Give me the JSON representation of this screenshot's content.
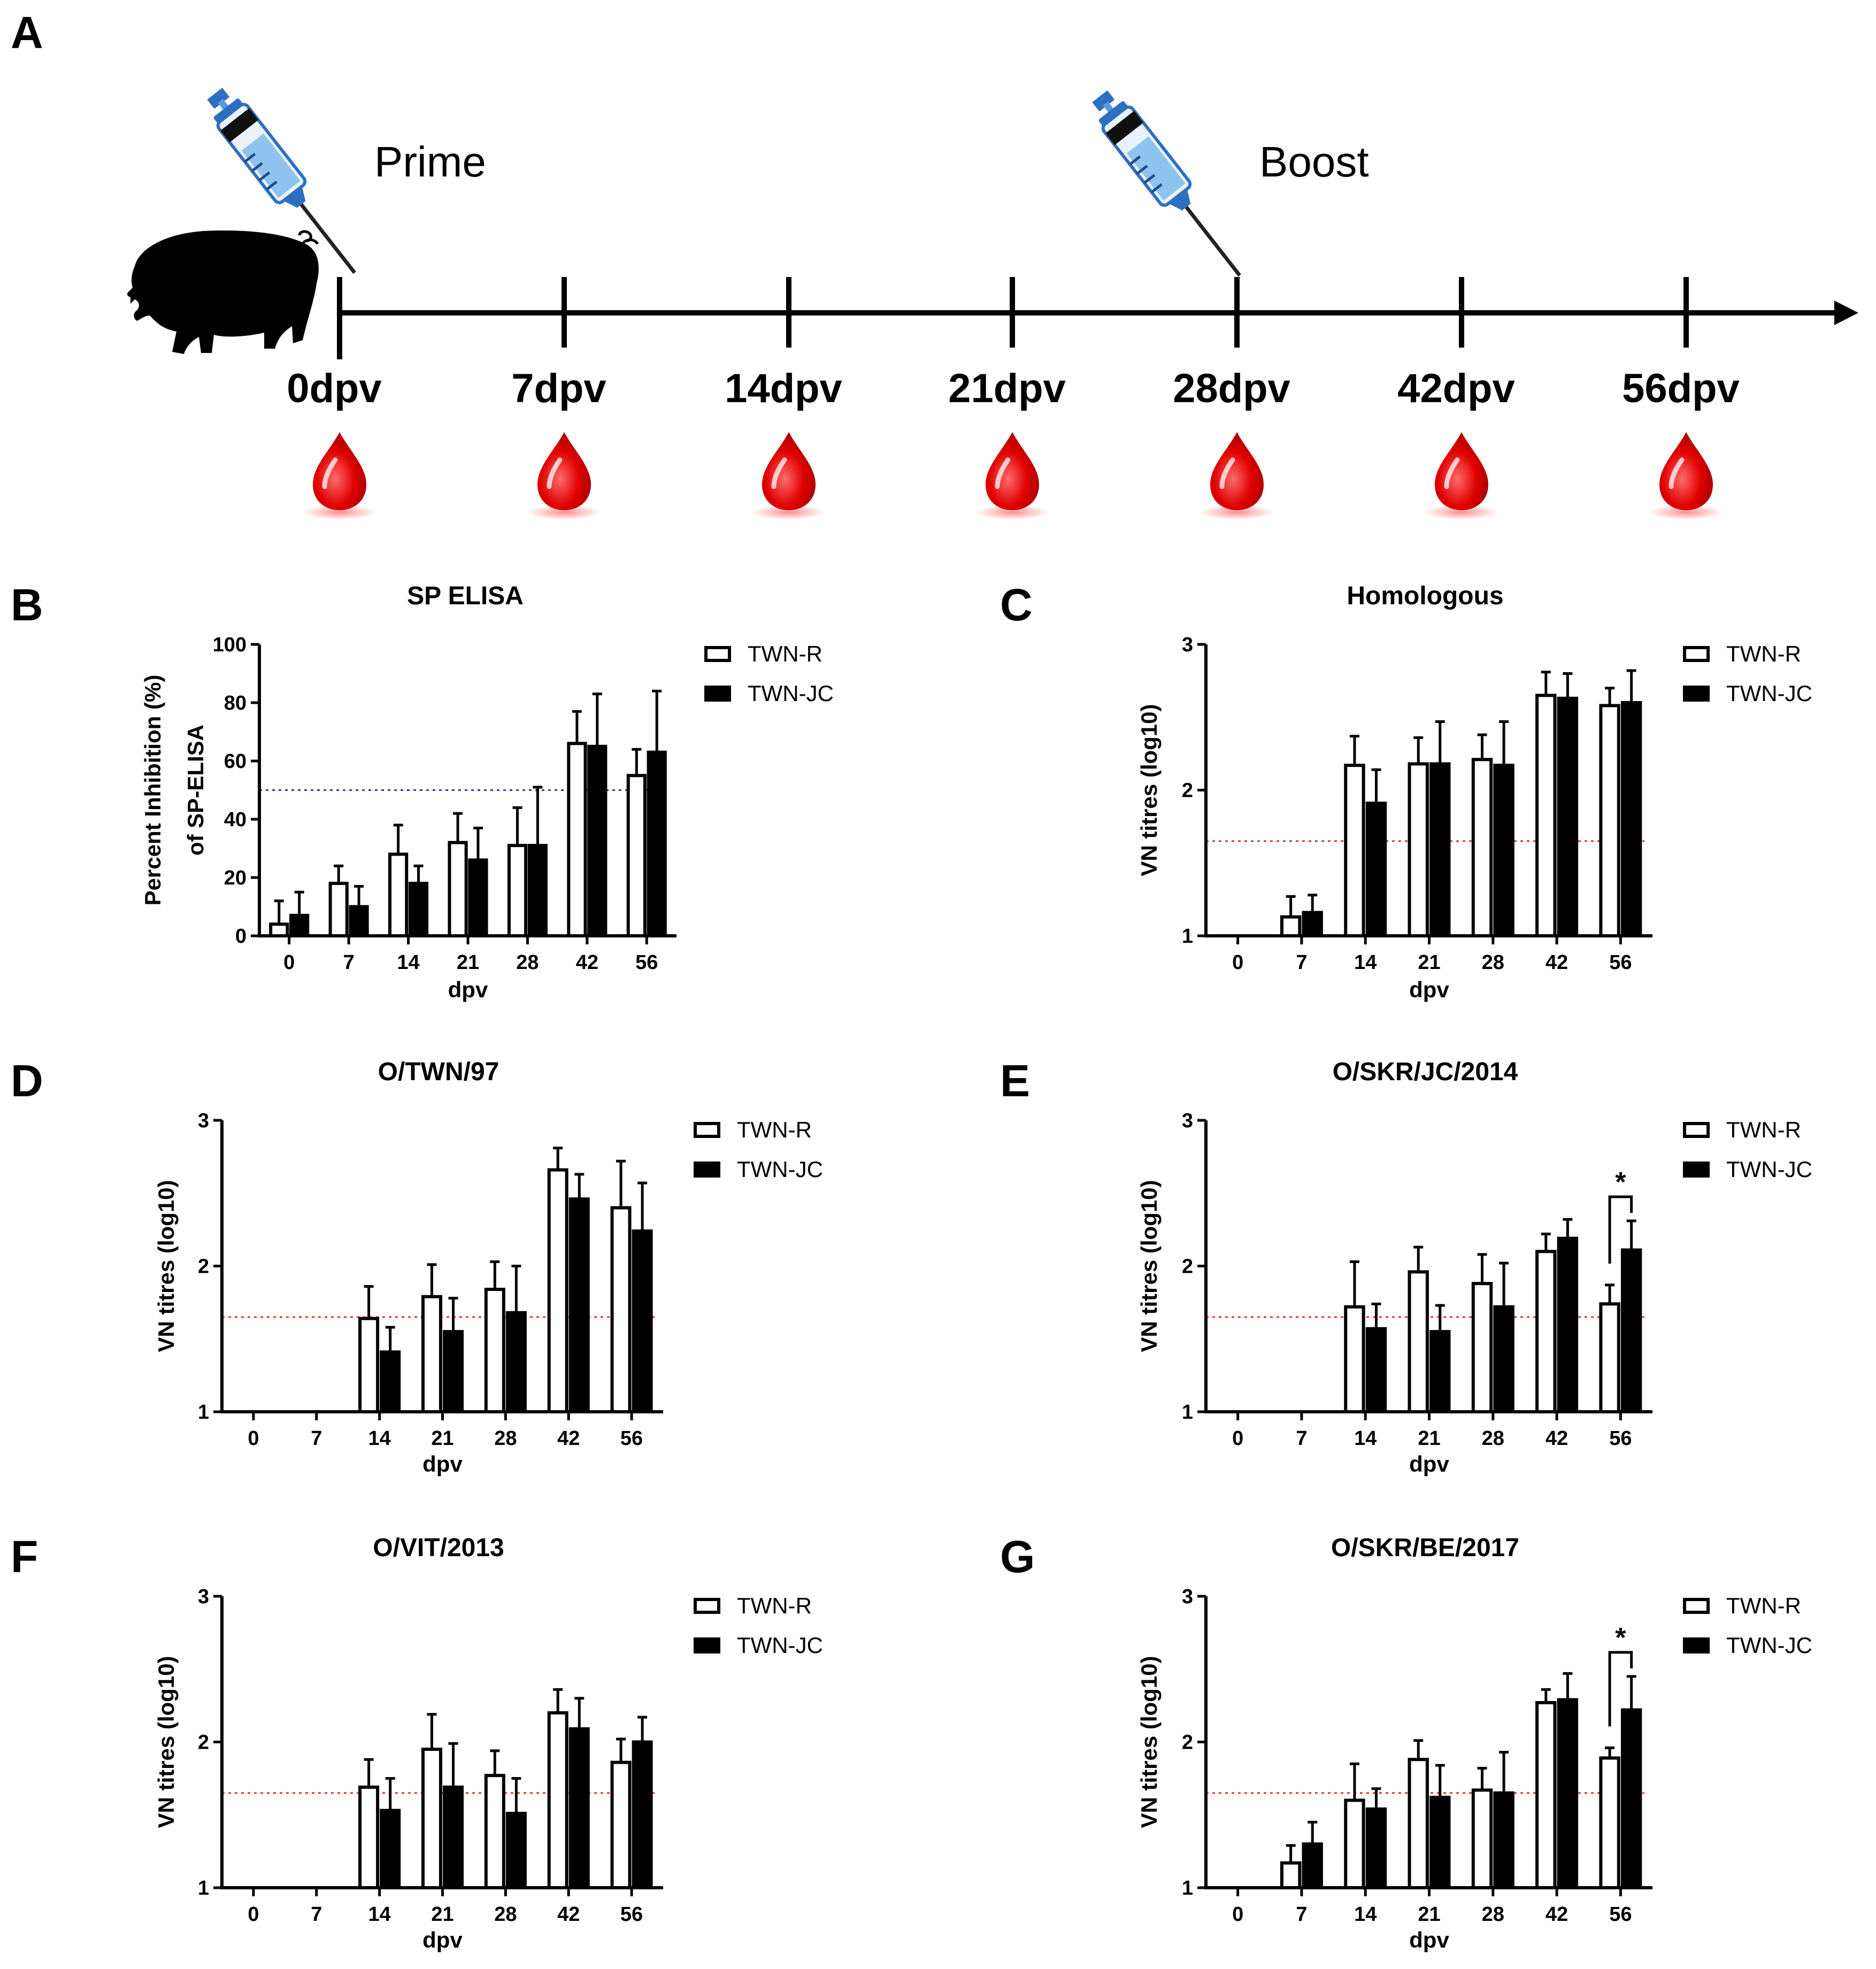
{
  "panel_a": {
    "letter": "A",
    "prime_label": "Prime",
    "boost_label": "Boost",
    "timepoints": [
      "0dpv",
      "7dpv",
      "14dpv",
      "21dpv",
      "28dpv",
      "42dpv",
      "56dpv"
    ],
    "icons": {
      "animal": "pig-icon",
      "injection": "syringe-icon",
      "sampling": "blood-drop-icon"
    }
  },
  "chart_data": [
    {
      "letter": "B",
      "type": "bar",
      "title": "SP ELISA",
      "categories": [
        "0",
        "7",
        "14",
        "21",
        "28",
        "42",
        "56"
      ],
      "xlabel": "dpv",
      "ylabel": [
        "Percent Inhibition (%)",
        "of SP-ELISA"
      ],
      "ylim": [
        0,
        100
      ],
      "yticks": [
        "0",
        "20",
        "40",
        "60",
        "80",
        "100"
      ],
      "threshold": 50,
      "threshold_color": "#3333aa",
      "series": [
        {
          "name": "TWN-R",
          "fill": "#ffffff",
          "values": [
            4,
            18,
            28,
            32,
            31,
            66,
            55
          ],
          "errors": [
            8,
            6,
            10,
            10,
            13,
            11,
            9
          ]
        },
        {
          "name": "TWN-JC",
          "fill": "#000000",
          "values": [
            7,
            10,
            18,
            26,
            31,
            65,
            63
          ],
          "errors": [
            8,
            7,
            6,
            11,
            20,
            18,
            21
          ]
        }
      ],
      "significance": []
    },
    {
      "letter": "C",
      "type": "bar",
      "title": "Homologous",
      "categories": [
        "0",
        "7",
        "14",
        "21",
        "28",
        "42",
        "56"
      ],
      "xlabel": "dpv",
      "ylabel": [
        "VN titres (log10)"
      ],
      "ylim": [
        1,
        3
      ],
      "yticks": [
        "1",
        "2",
        "3"
      ],
      "threshold": 1.65,
      "threshold_color": "#e03030",
      "series": [
        {
          "name": "TWN-R",
          "fill": "#ffffff",
          "values": [
            null,
            1.13,
            2.17,
            2.18,
            2.21,
            2.65,
            2.58
          ],
          "errors": [
            0,
            0.14,
            0.2,
            0.18,
            0.17,
            0.16,
            0.12
          ]
        },
        {
          "name": "TWN-JC",
          "fill": "#000000",
          "values": [
            null,
            1.16,
            1.91,
            2.18,
            2.17,
            2.63,
            2.6
          ],
          "errors": [
            0,
            0.12,
            0.23,
            0.29,
            0.3,
            0.17,
            0.22
          ]
        }
      ],
      "significance": []
    },
    {
      "letter": "D",
      "type": "bar",
      "title": "O/TWN/97",
      "categories": [
        "0",
        "7",
        "14",
        "21",
        "28",
        "42",
        "56"
      ],
      "xlabel": "dpv",
      "ylabel": [
        "VN titres (log10)"
      ],
      "ylim": [
        1,
        3
      ],
      "yticks": [
        "1",
        "2",
        "3"
      ],
      "threshold": 1.65,
      "threshold_color": "#e03030",
      "series": [
        {
          "name": "TWN-R",
          "fill": "#ffffff",
          "values": [
            null,
            null,
            1.64,
            1.79,
            1.84,
            2.66,
            2.4
          ],
          "errors": [
            0,
            0,
            0.22,
            0.22,
            0.19,
            0.15,
            0.32
          ]
        },
        {
          "name": "TWN-JC",
          "fill": "#000000",
          "values": [
            null,
            null,
            1.41,
            1.55,
            1.68,
            2.46,
            2.24
          ],
          "errors": [
            0,
            0,
            0.17,
            0.23,
            0.32,
            0.17,
            0.33
          ]
        }
      ],
      "significance": []
    },
    {
      "letter": "E",
      "type": "bar",
      "title": "O/SKR/JC/2014",
      "categories": [
        "0",
        "7",
        "14",
        "21",
        "28",
        "42",
        "56"
      ],
      "xlabel": "dpv",
      "ylabel": [
        "VN titres (log10)"
      ],
      "ylim": [
        1,
        3
      ],
      "yticks": [
        "1",
        "2",
        "3"
      ],
      "threshold": 1.65,
      "threshold_color": "#e03030",
      "series": [
        {
          "name": "TWN-R",
          "fill": "#ffffff",
          "values": [
            null,
            null,
            1.72,
            1.96,
            1.88,
            2.1,
            1.74
          ],
          "errors": [
            0,
            0,
            0.31,
            0.17,
            0.2,
            0.12,
            0.13
          ]
        },
        {
          "name": "TWN-JC",
          "fill": "#000000",
          "values": [
            null,
            null,
            1.57,
            1.55,
            1.72,
            2.19,
            2.11
          ],
          "errors": [
            0,
            0,
            0.17,
            0.18,
            0.3,
            0.13,
            0.2
          ]
        }
      ],
      "significance": [
        {
          "category": "56",
          "label": "*"
        }
      ]
    },
    {
      "letter": "F",
      "type": "bar",
      "title": "O/VIT/2013",
      "categories": [
        "0",
        "7",
        "14",
        "21",
        "28",
        "42",
        "56"
      ],
      "xlabel": "dpv",
      "ylabel": [
        "VN titres (log10)"
      ],
      "ylim": [
        1,
        3
      ],
      "yticks": [
        "1",
        "2",
        "3"
      ],
      "threshold": 1.65,
      "threshold_color": "#e03030",
      "series": [
        {
          "name": "TWN-R",
          "fill": "#ffffff",
          "values": [
            null,
            null,
            1.69,
            1.95,
            1.77,
            2.2,
            1.86
          ],
          "errors": [
            0,
            0,
            0.19,
            0.24,
            0.17,
            0.16,
            0.16
          ]
        },
        {
          "name": "TWN-JC",
          "fill": "#000000",
          "values": [
            null,
            null,
            1.53,
            1.69,
            1.51,
            2.09,
            2.0
          ],
          "errors": [
            0,
            0,
            0.22,
            0.3,
            0.24,
            0.21,
            0.17
          ]
        }
      ],
      "significance": []
    },
    {
      "letter": "G",
      "type": "bar",
      "title": "O/SKR/BE/2017",
      "categories": [
        "0",
        "7",
        "14",
        "21",
        "28",
        "42",
        "56"
      ],
      "xlabel": "dpv",
      "ylabel": [
        "VN titres (log10)"
      ],
      "ylim": [
        1,
        3
      ],
      "yticks": [
        "1",
        "2",
        "3"
      ],
      "threshold": 1.65,
      "threshold_color": "#e03030",
      "series": [
        {
          "name": "TWN-R",
          "fill": "#ffffff",
          "values": [
            null,
            1.17,
            1.6,
            1.88,
            1.67,
            2.27,
            1.89
          ],
          "errors": [
            0,
            0.12,
            0.25,
            0.13,
            0.15,
            0.09,
            0.07
          ]
        },
        {
          "name": "TWN-JC",
          "fill": "#000000",
          "values": [
            null,
            1.3,
            1.54,
            1.62,
            1.65,
            2.29,
            2.22
          ],
          "errors": [
            0,
            0.15,
            0.14,
            0.22,
            0.28,
            0.18,
            0.23
          ]
        }
      ],
      "significance": [
        {
          "category": "56",
          "label": "*"
        }
      ]
    }
  ]
}
